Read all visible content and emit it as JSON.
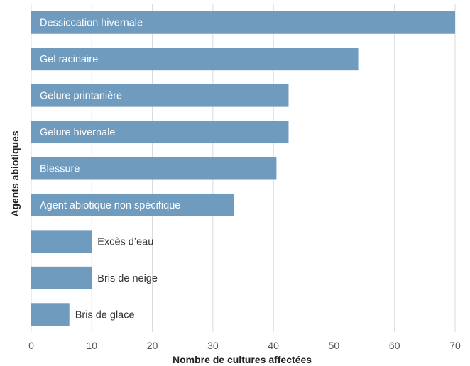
{
  "chart_data": {
    "type": "bar",
    "orientation": "horizontal",
    "categories": [
      "Dessiccation hivernale",
      "Gel racinaire",
      "Gelure printanière",
      "Gelure hivernale",
      "Blessure",
      "Agent abiotique non spécifique",
      "Excès d’eau",
      "Bris de neige",
      "Bris de glace"
    ],
    "values": [
      70,
      54,
      42.5,
      42.5,
      40.5,
      33.5,
      10,
      10,
      6.3
    ],
    "xlabel": "Nombre de cultures affectées",
    "ylabel": "Agents  abiotiques",
    "xlim": [
      0,
      70
    ],
    "xticks": [
      0,
      10,
      20,
      30,
      40,
      50,
      60,
      70
    ],
    "grid": "vertical",
    "bar_color": "#6f9bbf",
    "label_inside_color": "#ffffff",
    "label_outside_color": "#333333",
    "gridline_color": "#d9d9d9"
  }
}
